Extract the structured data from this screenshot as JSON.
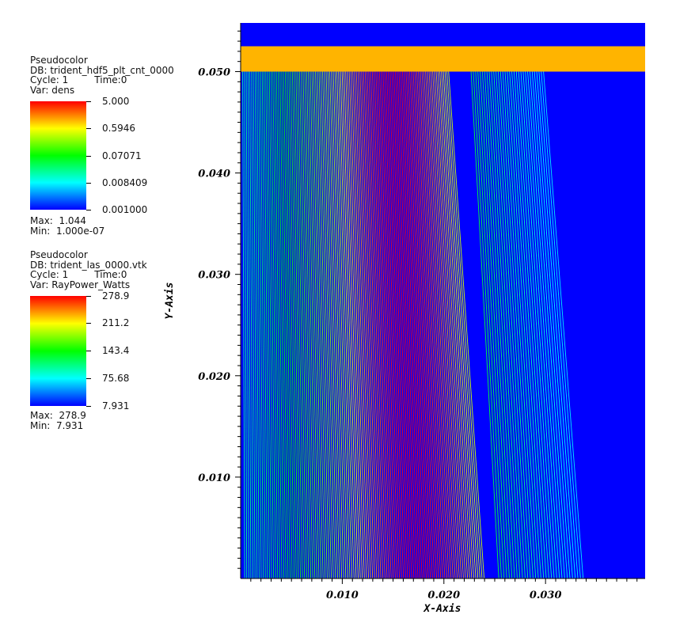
{
  "legend1": {
    "title": "Pseudocolor",
    "db": "DB: trident_hdf5_plt_cnt_0000",
    "cycle": "Cycle: 1",
    "time": "Time:0",
    "var": "Var: dens",
    "ticks": [
      "5.000",
      "0.5946",
      "0.07071",
      "0.008409",
      "0.001000"
    ],
    "max": "Max:  1.044",
    "min": "Min:  1.000e-07"
  },
  "legend2": {
    "title": "Pseudocolor",
    "db": "DB: trident_las_0000.vtk",
    "cycle": "Cycle: 1",
    "time": "Time:0",
    "var": "Var: RayPower_Watts",
    "ticks": [
      "278.9",
      "211.2",
      "143.4",
      "75.68",
      "7.931"
    ],
    "max": "Max:  278.9",
    "min": "Min:  7.931"
  },
  "colors": {
    "background_field": "#0000ff",
    "top_band": "#ffb400",
    "top_strip": "#0000ff"
  },
  "chart_data": {
    "type": "line",
    "xlabel": "X-Axis",
    "ylabel": "Y-Axis",
    "xlim": [
      0.0,
      0.0398
    ],
    "ylim": [
      0.0,
      0.0548
    ],
    "x_ticks": [
      "0.010",
      "0.020",
      "0.030"
    ],
    "y_ticks": [
      "0.010",
      "0.020",
      "0.030",
      "0.040",
      "0.050"
    ],
    "x_tick_values": [
      0.01,
      0.02,
      0.03
    ],
    "y_tick_values": [
      0.01,
      0.02,
      0.03,
      0.04,
      0.05
    ],
    "density_interface_y": 0.05,
    "band_y_range": [
      0.05,
      0.0525
    ],
    "rays": {
      "description_count_bottom_start": 0.0,
      "x_bottom_min": 0.0004,
      "x_bottom_max": 0.0337,
      "x_top_min": 0.0002,
      "x_top_max": 0.0298
    }
  }
}
